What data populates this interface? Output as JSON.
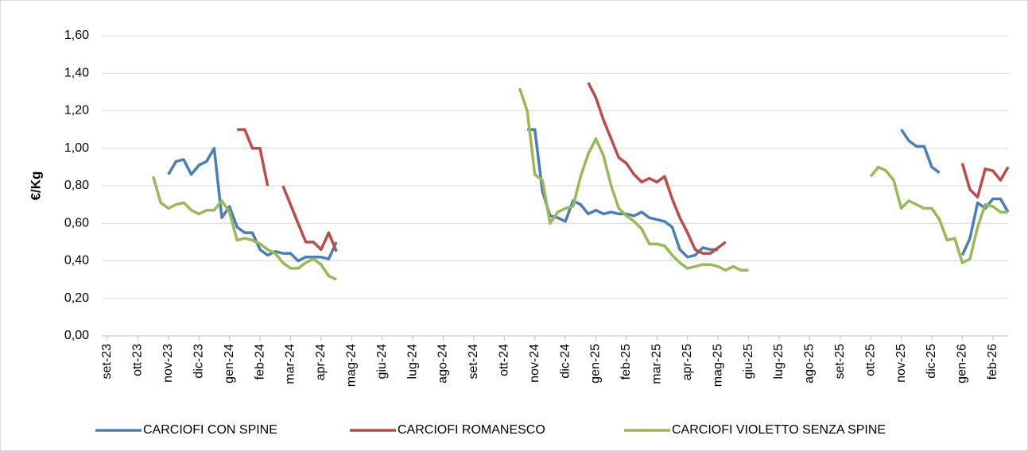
{
  "chart_data": {
    "type": "line",
    "y_label": "€/Kg",
    "categories": [
      "set-23",
      null,
      null,
      null,
      "ott-23",
      null,
      null,
      null,
      "nov-23",
      null,
      null,
      null,
      "dic-23",
      null,
      null,
      null,
      "gen-24",
      null,
      null,
      null,
      "feb-24",
      null,
      null,
      null,
      "mar-24",
      null,
      null,
      null,
      "apr-24",
      null,
      null,
      null,
      "mag-24",
      null,
      null,
      null,
      "giu-24",
      null,
      null,
      null,
      "lug-24",
      null,
      null,
      null,
      "ago-24",
      null,
      null,
      null,
      "set-24",
      null,
      null,
      null,
      "ott-24",
      null,
      null,
      null,
      "nov-24",
      null,
      null,
      null,
      "dic-24",
      null,
      null,
      null,
      "gen-25",
      null,
      null,
      null,
      "feb-25",
      null,
      null,
      null,
      "mar-25",
      null,
      null,
      null,
      "apr-25",
      null,
      null,
      null,
      "mag-25",
      null,
      null,
      null,
      "giu-25",
      null,
      null,
      null,
      "lug-25",
      null,
      null,
      null,
      "ago-25",
      null,
      null,
      null,
      "set-25",
      null,
      null,
      null,
      "ott-25",
      null,
      null,
      null,
      "nov-25",
      null,
      null,
      null,
      "dic-25",
      null,
      null,
      null,
      "gen-26",
      null,
      null,
      null,
      "feb-26",
      null,
      null
    ],
    "series": [
      {
        "name": "CARCIOFI CON SPINE",
        "color": "#4a7ebb",
        "values": [
          null,
          null,
          null,
          null,
          null,
          null,
          null,
          null,
          0.86,
          0.93,
          0.94,
          0.86,
          0.91,
          0.93,
          1.0,
          0.63,
          0.69,
          0.58,
          0.55,
          0.55,
          0.46,
          0.43,
          0.45,
          0.44,
          0.44,
          0.4,
          0.42,
          0.42,
          0.42,
          0.41,
          0.5,
          null,
          null,
          null,
          null,
          null,
          null,
          null,
          null,
          null,
          null,
          null,
          null,
          null,
          null,
          null,
          null,
          null,
          null,
          null,
          null,
          null,
          null,
          null,
          null,
          1.1,
          1.1,
          0.77,
          0.64,
          0.63,
          0.61,
          0.72,
          0.7,
          0.65,
          0.67,
          0.65,
          0.66,
          0.65,
          0.65,
          0.64,
          0.66,
          0.63,
          0.62,
          0.61,
          0.58,
          0.46,
          0.42,
          0.43,
          0.47,
          0.46,
          0.46,
          null,
          null,
          null,
          null,
          null,
          null,
          null,
          null,
          null,
          null,
          null,
          null,
          null,
          null,
          null,
          null,
          null,
          null,
          null,
          null,
          null,
          null,
          null,
          1.1,
          1.04,
          1.01,
          1.01,
          0.9,
          0.87,
          null,
          null,
          0.43,
          0.52,
          0.71,
          0.68,
          0.73,
          0.73,
          0.66
        ]
      },
      {
        "name": "CARCIOFI ROMANESCO",
        "color": "#be4b48",
        "values": [
          null,
          null,
          null,
          null,
          null,
          null,
          null,
          null,
          null,
          null,
          null,
          null,
          null,
          null,
          null,
          null,
          null,
          1.1,
          1.1,
          1.0,
          1.0,
          0.8,
          null,
          0.8,
          0.7,
          0.6,
          0.5,
          0.5,
          0.46,
          0.55,
          0.45,
          null,
          null,
          null,
          null,
          null,
          null,
          null,
          null,
          null,
          null,
          null,
          null,
          null,
          null,
          null,
          null,
          null,
          null,
          null,
          null,
          null,
          null,
          null,
          null,
          null,
          null,
          null,
          null,
          null,
          null,
          null,
          null,
          1.35,
          1.27,
          1.15,
          1.05,
          0.95,
          0.92,
          0.86,
          0.82,
          0.84,
          0.82,
          0.85,
          0.73,
          0.63,
          0.55,
          0.46,
          0.44,
          0.44,
          0.47,
          0.5,
          null,
          null,
          null,
          null,
          null,
          null,
          null,
          null,
          null,
          null,
          null,
          null,
          null,
          null,
          null,
          null,
          null,
          null,
          null,
          null,
          null,
          null,
          null,
          null,
          null,
          null,
          null,
          null,
          null,
          null,
          0.92,
          0.78,
          0.74,
          0.89,
          0.88,
          0.83,
          0.9
        ]
      },
      {
        "name": "CARCIOFI VIOLETTO SENZA SPINE",
        "color": "#98b954",
        "values": [
          null,
          null,
          null,
          null,
          null,
          null,
          0.85,
          0.71,
          0.68,
          0.7,
          0.71,
          0.67,
          0.65,
          0.67,
          0.67,
          0.72,
          0.66,
          0.51,
          0.52,
          0.51,
          0.49,
          0.46,
          0.44,
          0.39,
          0.36,
          0.36,
          0.39,
          0.41,
          0.38,
          0.32,
          0.3,
          null,
          null,
          null,
          null,
          null,
          null,
          null,
          null,
          null,
          null,
          null,
          null,
          null,
          null,
          null,
          null,
          null,
          null,
          null,
          null,
          null,
          null,
          null,
          1.32,
          1.2,
          0.86,
          0.83,
          0.6,
          0.66,
          0.68,
          0.69,
          0.85,
          0.97,
          1.05,
          0.96,
          0.8,
          0.68,
          0.64,
          0.61,
          0.57,
          0.49,
          0.49,
          0.48,
          0.43,
          0.39,
          0.36,
          0.37,
          0.38,
          0.38,
          0.37,
          0.35,
          0.37,
          0.35,
          0.35,
          null,
          null,
          null,
          null,
          null,
          null,
          null,
          null,
          null,
          null,
          null,
          null,
          null,
          null,
          null,
          0.85,
          0.9,
          0.88,
          0.83,
          0.68,
          0.72,
          0.7,
          0.68,
          0.68,
          0.62,
          0.51,
          0.52,
          0.39,
          0.41,
          0.58,
          0.7,
          0.69,
          0.66,
          0.66
        ]
      }
    ],
    "ylim": [
      0,
      1.6
    ],
    "yticks": [
      {
        "value": 0,
        "label": "0,00"
      },
      {
        "value": 0.2,
        "label": "0,20"
      },
      {
        "value": 0.4,
        "label": "0,40"
      },
      {
        "value": 0.6,
        "label": "0,60"
      },
      {
        "value": 0.8,
        "label": "0,80"
      },
      {
        "value": 1.0,
        "label": "1,00"
      },
      {
        "value": 1.2,
        "label": "1,20"
      },
      {
        "value": 1.4,
        "label": "1,40"
      },
      {
        "value": 1.6,
        "label": "1,60"
      }
    ],
    "grid": true,
    "legend": "bottom"
  }
}
